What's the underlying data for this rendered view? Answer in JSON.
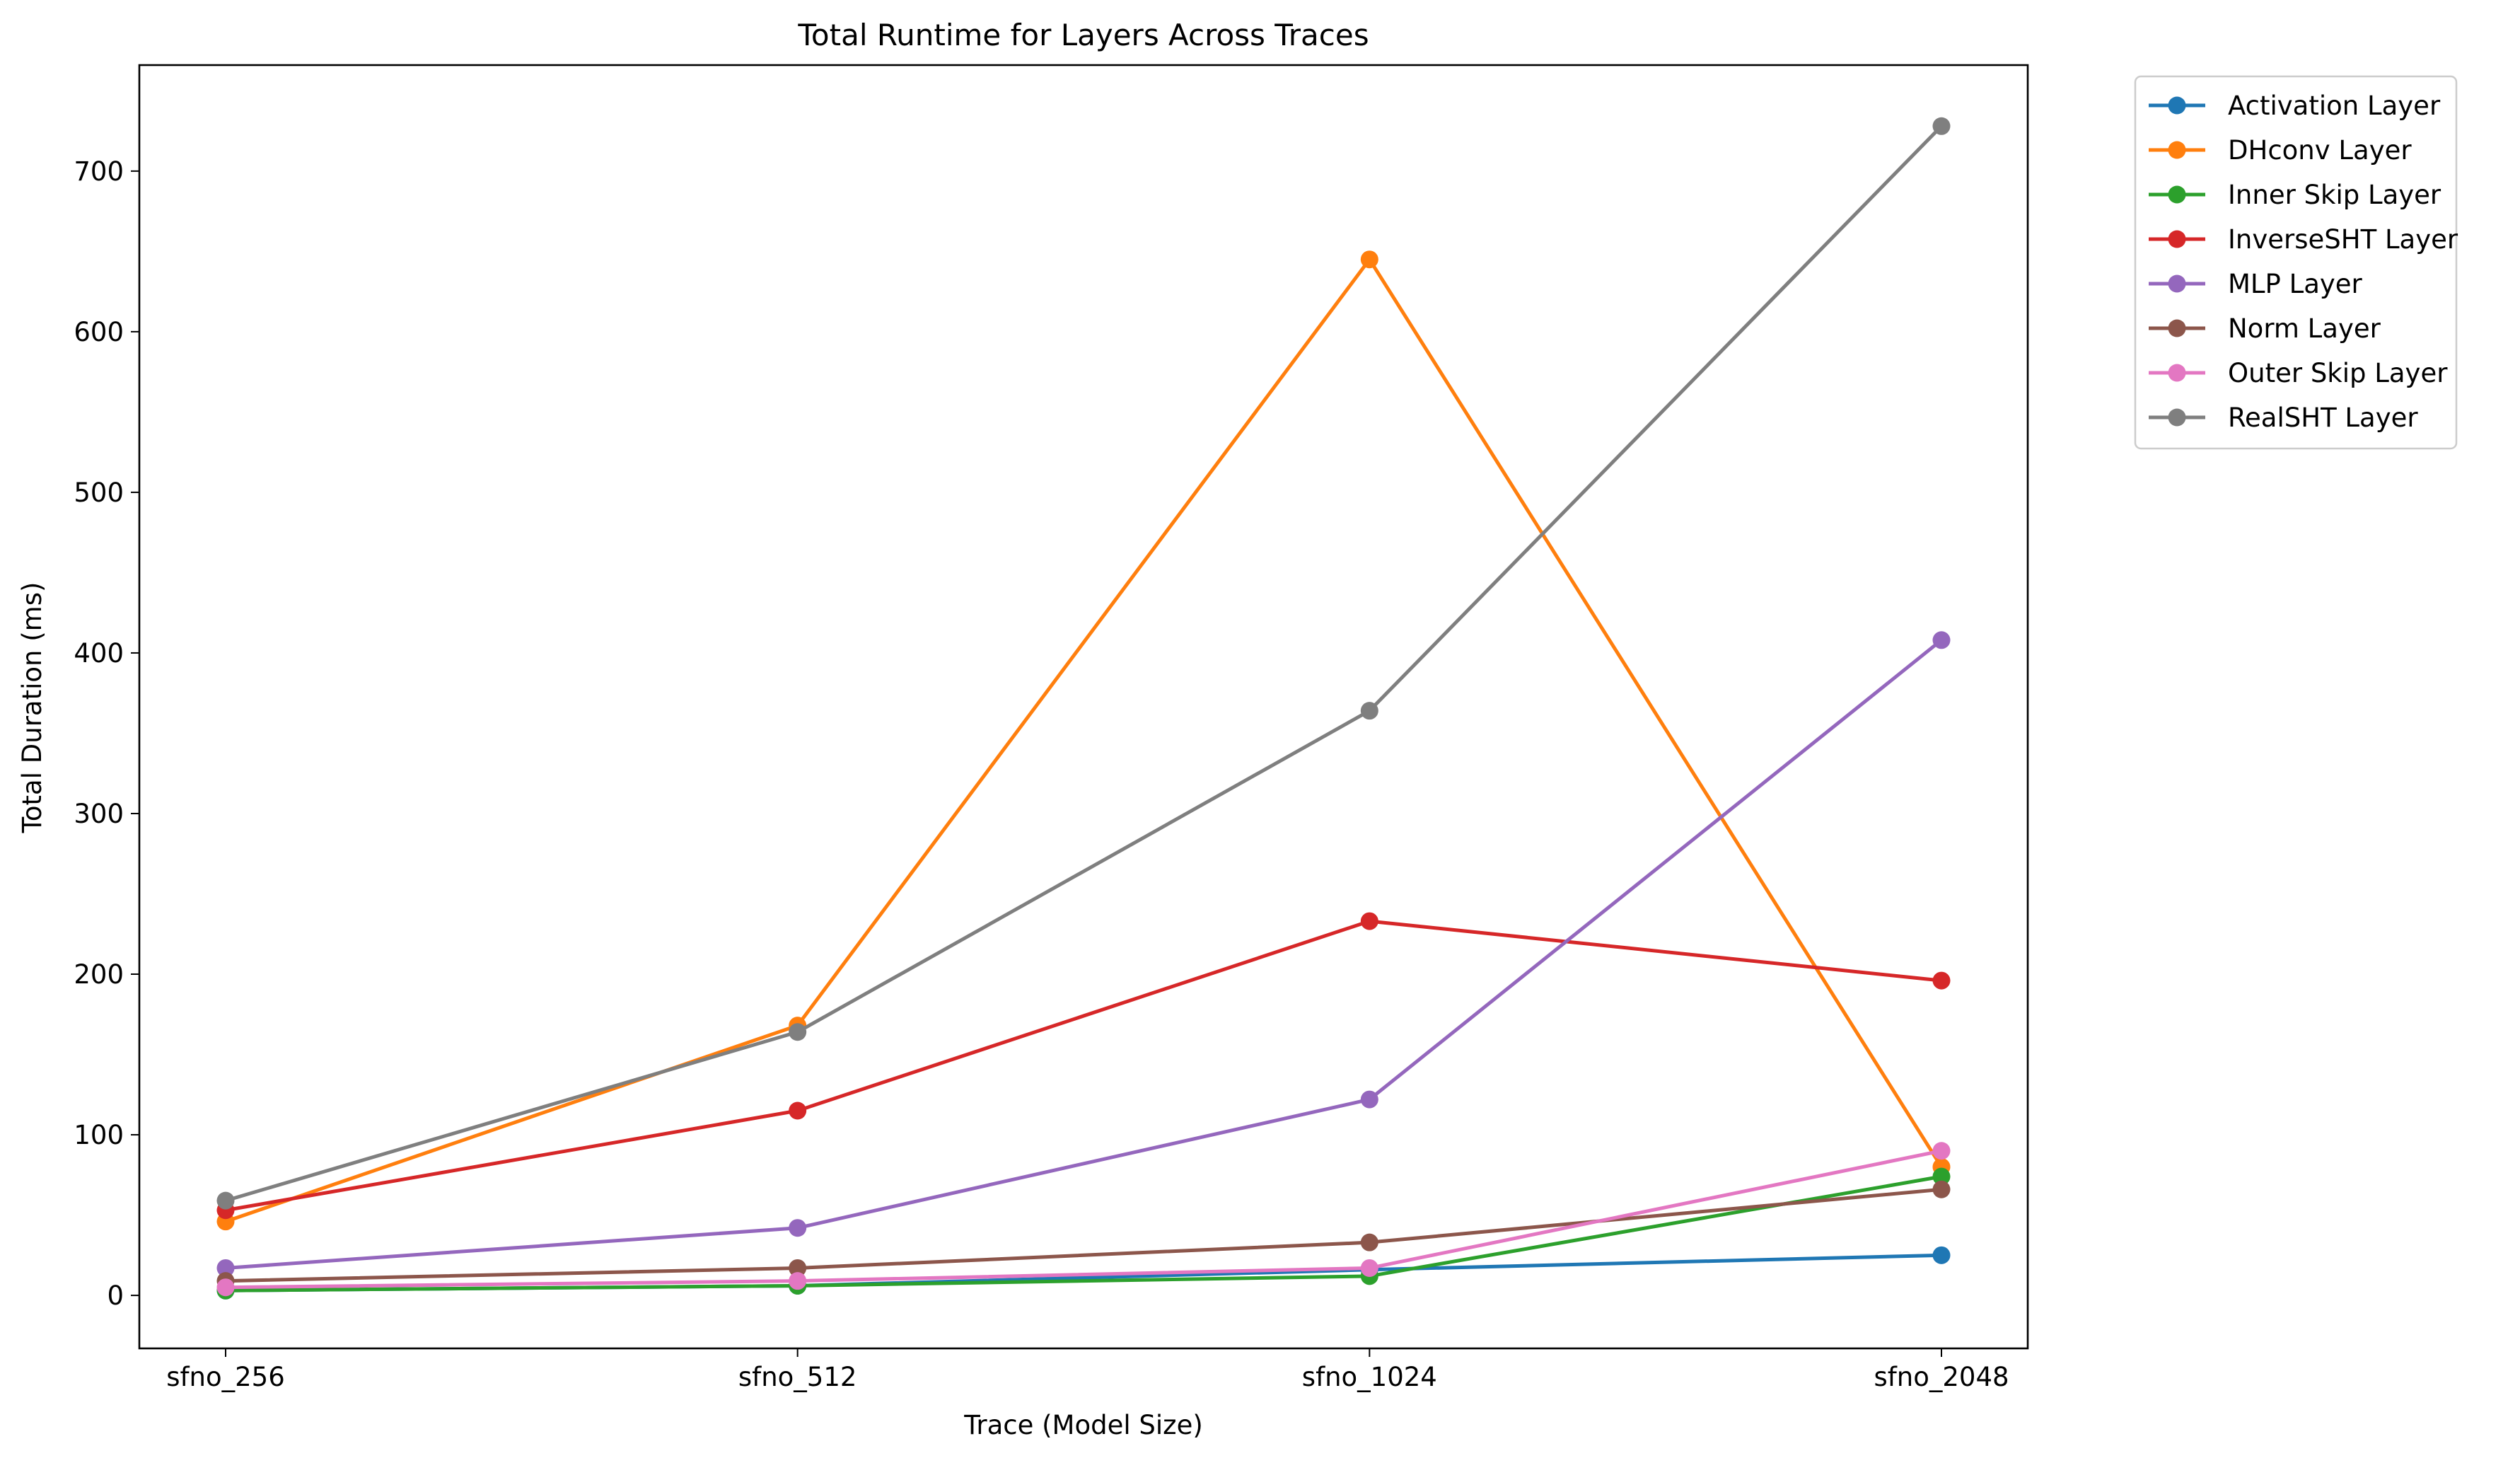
{
  "chart_data": {
    "type": "line",
    "title": "Total Runtime for Layers Across Traces",
    "xlabel": "Trace (Model Size)",
    "ylabel": "Total Duration (ms)",
    "categories": [
      "sfno_256",
      "sfno_512",
      "sfno_1024",
      "sfno_2048"
    ],
    "ylim": [
      -33,
      766
    ],
    "yticks": [
      0,
      100,
      200,
      300,
      400,
      500,
      600,
      700
    ],
    "grid": false,
    "legend_position": "outside-top-right",
    "series": [
      {
        "name": "Activation Layer",
        "color": "#1f77b4",
        "values": [
          3,
          6,
          16,
          25
        ]
      },
      {
        "name": "DHconv Layer",
        "color": "#ff7f0e",
        "values": [
          46,
          168,
          645,
          80
        ]
      },
      {
        "name": "Inner Skip Layer",
        "color": "#2ca02c",
        "values": [
          3,
          6,
          12,
          74
        ]
      },
      {
        "name": "InverseSHT Layer",
        "color": "#d62728",
        "values": [
          53,
          115,
          233,
          196
        ]
      },
      {
        "name": "MLP Layer",
        "color": "#9467bd",
        "values": [
          17,
          42,
          122,
          408
        ]
      },
      {
        "name": "Norm Layer",
        "color": "#8c564b",
        "values": [
          9,
          17,
          33,
          66
        ]
      },
      {
        "name": "Outer Skip Layer",
        "color": "#e377c2",
        "values": [
          5,
          9,
          17,
          90
        ]
      },
      {
        "name": "RealSHT Layer",
        "color": "#7f7f7f",
        "values": [
          59,
          164,
          364,
          728
        ]
      }
    ]
  }
}
